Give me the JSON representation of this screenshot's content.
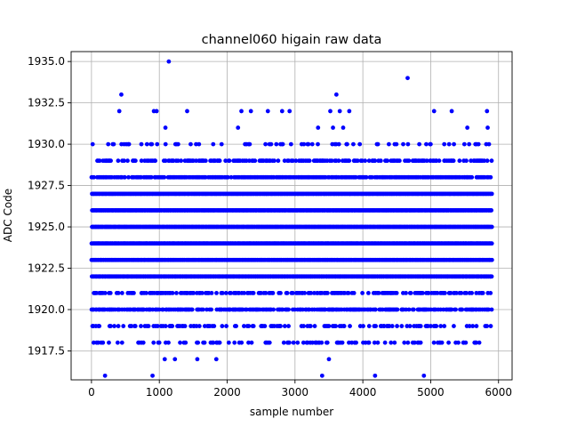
{
  "chart_data": {
    "type": "scatter",
    "title": "channel060 higain raw data",
    "xlabel": "sample number",
    "ylabel": "ADC Code",
    "xlim": [
      -300,
      6200
    ],
    "ylim": [
      1915.75,
      1935.6
    ],
    "x_ticks": [
      0,
      1000,
      2000,
      3000,
      4000,
      5000,
      6000
    ],
    "x_tick_labels": [
      "0",
      "1000",
      "2000",
      "3000",
      "4000",
      "5000",
      "6000"
    ],
    "y_ticks": [
      1917.5,
      1920.0,
      1922.5,
      1925.0,
      1927.5,
      1930.0,
      1932.5,
      1935.0
    ],
    "y_tick_labels": [
      "1917.5",
      "1920.0",
      "1922.5",
      "1925.0",
      "1927.5",
      "1930.0",
      "1932.5",
      "1935.0"
    ],
    "grid": true,
    "marker_color": "#0000ff",
    "n_samples": 5900,
    "levels": [
      {
        "value": 1918,
        "density": 0.22
      },
      {
        "value": 1919,
        "density": 0.3
      },
      {
        "value": 1920,
        "density": 0.6
      },
      {
        "value": 1921,
        "density": 0.45
      },
      {
        "value": 1922,
        "density": 1.0
      },
      {
        "value": 1923,
        "density": 1.0
      },
      {
        "value": 1924,
        "density": 1.0
      },
      {
        "value": 1925,
        "density": 1.0
      },
      {
        "value": 1926,
        "density": 1.0
      },
      {
        "value": 1927,
        "density": 1.0
      },
      {
        "value": 1928,
        "density": 0.75
      },
      {
        "value": 1929,
        "density": 0.45
      },
      {
        "value": 1930,
        "density": 0.22
      }
    ],
    "outliers": [
      {
        "x": 200,
        "y": 1916
      },
      {
        "x": 900,
        "y": 1916
      },
      {
        "x": 3400,
        "y": 1916
      },
      {
        "x": 4180,
        "y": 1916
      },
      {
        "x": 4900,
        "y": 1916
      },
      {
        "x": 1080,
        "y": 1917
      },
      {
        "x": 1230,
        "y": 1917
      },
      {
        "x": 1560,
        "y": 1917
      },
      {
        "x": 1840,
        "y": 1917
      },
      {
        "x": 3500,
        "y": 1917
      },
      {
        "x": 1090,
        "y": 1931
      },
      {
        "x": 2160,
        "y": 1931
      },
      {
        "x": 3340,
        "y": 1931
      },
      {
        "x": 3560,
        "y": 1931
      },
      {
        "x": 3710,
        "y": 1931
      },
      {
        "x": 5540,
        "y": 1931
      },
      {
        "x": 5840,
        "y": 1931
      },
      {
        "x": 410,
        "y": 1932
      },
      {
        "x": 920,
        "y": 1932
      },
      {
        "x": 960,
        "y": 1932
      },
      {
        "x": 1410,
        "y": 1932
      },
      {
        "x": 2210,
        "y": 1932
      },
      {
        "x": 2350,
        "y": 1932
      },
      {
        "x": 2600,
        "y": 1932
      },
      {
        "x": 2810,
        "y": 1932
      },
      {
        "x": 2920,
        "y": 1932
      },
      {
        "x": 3520,
        "y": 1932
      },
      {
        "x": 3660,
        "y": 1932
      },
      {
        "x": 3800,
        "y": 1932
      },
      {
        "x": 5050,
        "y": 1932
      },
      {
        "x": 5310,
        "y": 1932
      },
      {
        "x": 5830,
        "y": 1932
      },
      {
        "x": 440,
        "y": 1933
      },
      {
        "x": 3610,
        "y": 1933
      },
      {
        "x": 4660,
        "y": 1934
      },
      {
        "x": 1140,
        "y": 1935
      }
    ]
  }
}
